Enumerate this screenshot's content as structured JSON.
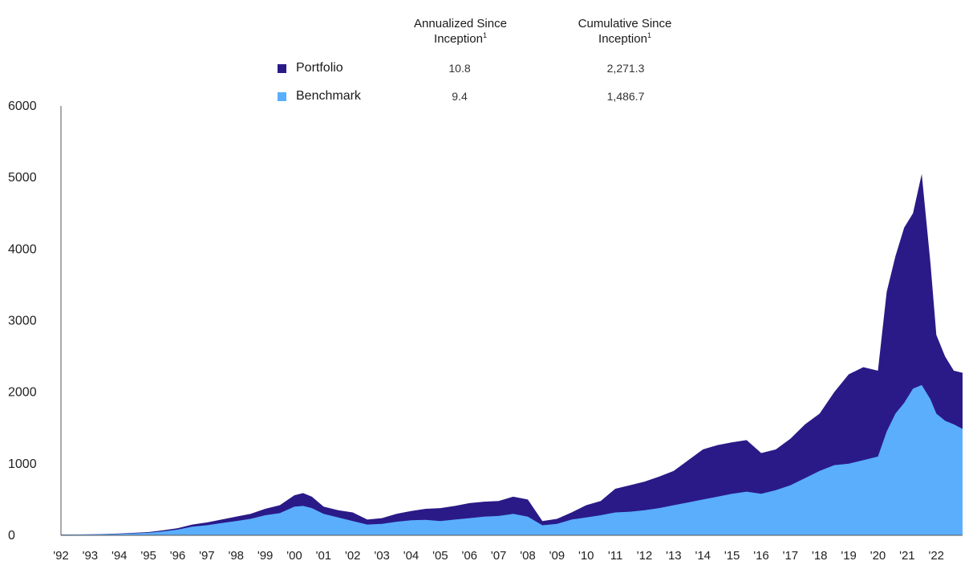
{
  "legend": {
    "col1_title": "Annualized Since",
    "col1_title2": "Inception",
    "col2_title": "Cumulative Since",
    "col2_title2": "Inception",
    "footnote_mark": "1",
    "rows": [
      {
        "name": "Portfolio",
        "color": "#2a1a87",
        "annualized": "10.8",
        "cumulative": "2,271.3"
      },
      {
        "name": "Benchmark",
        "color": "#5aaefc",
        "annualized": "9.4",
        "cumulative": "1,486.7"
      }
    ]
  },
  "chart_data": {
    "type": "area",
    "ylim": [
      0,
      6000
    ],
    "yticks": [
      0,
      1000,
      2000,
      3000,
      4000,
      5000,
      6000
    ],
    "xlim": [
      1992.0,
      2022.9
    ],
    "xticks": [
      {
        "value": 1992,
        "label": "'92"
      },
      {
        "value": 1993,
        "label": "'93"
      },
      {
        "value": 1994,
        "label": "'94"
      },
      {
        "value": 1995,
        "label": "'95"
      },
      {
        "value": 1996,
        "label": "'96"
      },
      {
        "value": 1997,
        "label": "'97"
      },
      {
        "value": 1998,
        "label": "'98"
      },
      {
        "value": 1999,
        "label": "'99"
      },
      {
        "value": 2000,
        "label": "'00"
      },
      {
        "value": 2001,
        "label": "'01"
      },
      {
        "value": 2002,
        "label": "'02"
      },
      {
        "value": 2003,
        "label": "'03"
      },
      {
        "value": 2004,
        "label": "'04"
      },
      {
        "value": 2005,
        "label": "'05"
      },
      {
        "value": 2006,
        "label": "'06"
      },
      {
        "value": 2007,
        "label": "'07"
      },
      {
        "value": 2008,
        "label": "'08"
      },
      {
        "value": 2009,
        "label": "'09"
      },
      {
        "value": 2010,
        "label": "'10"
      },
      {
        "value": 2011,
        "label": "'11"
      },
      {
        "value": 2012,
        "label": "'12"
      },
      {
        "value": 2013,
        "label": "'13"
      },
      {
        "value": 2014,
        "label": "'14"
      },
      {
        "value": 2015,
        "label": "'15"
      },
      {
        "value": 2016,
        "label": "'16"
      },
      {
        "value": 2017,
        "label": "'17"
      },
      {
        "value": 2018,
        "label": "'18"
      },
      {
        "value": 2019,
        "label": "'19"
      },
      {
        "value": 2020,
        "label": "'20"
      },
      {
        "value": 2021,
        "label": "'21"
      },
      {
        "value": 2022,
        "label": "'22"
      }
    ],
    "series": [
      {
        "name": "Portfolio",
        "color": "#2a1a87",
        "x": [
          1992.0,
          1993.0,
          1994.0,
          1995.0,
          1995.5,
          1996.0,
          1996.5,
          1997.0,
          1997.5,
          1998.0,
          1998.5,
          1999.0,
          1999.5,
          2000.0,
          2000.3,
          2000.6,
          2001.0,
          2001.5,
          2002.0,
          2002.5,
          2003.0,
          2003.5,
          2004.0,
          2004.5,
          2005.0,
          2005.5,
          2006.0,
          2006.5,
          2007.0,
          2007.5,
          2008.0,
          2008.5,
          2009.0,
          2009.5,
          2010.0,
          2010.5,
          2011.0,
          2011.5,
          2012.0,
          2012.5,
          2013.0,
          2013.5,
          2014.0,
          2014.5,
          2015.0,
          2015.5,
          2016.0,
          2016.5,
          2017.0,
          2017.5,
          2018.0,
          2018.5,
          2019.0,
          2019.5,
          2020.0,
          2020.3,
          2020.6,
          2020.9,
          2021.2,
          2021.5,
          2021.8,
          2022.0,
          2022.3,
          2022.6,
          2022.9
        ],
        "values": [
          10,
          15,
          25,
          45,
          70,
          100,
          150,
          180,
          220,
          260,
          300,
          370,
          420,
          560,
          590,
          540,
          400,
          350,
          320,
          220,
          240,
          300,
          340,
          370,
          380,
          410,
          450,
          470,
          480,
          540,
          500,
          200,
          230,
          320,
          420,
          480,
          650,
          700,
          750,
          820,
          900,
          1050,
          1200,
          1260,
          1300,
          1330,
          1150,
          1200,
          1350,
          1550,
          1700,
          2000,
          2250,
          2350,
          2300,
          3400,
          3900,
          4300,
          4500,
          5050,
          3800,
          2800,
          2500,
          2300,
          2271
        ]
      },
      {
        "name": "Benchmark",
        "color": "#5aaefc",
        "x": [
          1992.0,
          1993.0,
          1994.0,
          1995.0,
          1995.5,
          1996.0,
          1996.5,
          1997.0,
          1997.5,
          1998.0,
          1998.5,
          1999.0,
          1999.5,
          2000.0,
          2000.3,
          2000.6,
          2001.0,
          2001.5,
          2002.0,
          2002.5,
          2003.0,
          2003.5,
          2004.0,
          2004.5,
          2005.0,
          2005.5,
          2006.0,
          2006.5,
          2007.0,
          2007.5,
          2008.0,
          2008.5,
          2009.0,
          2009.5,
          2010.0,
          2010.5,
          2011.0,
          2011.5,
          2012.0,
          2012.5,
          2013.0,
          2013.5,
          2014.0,
          2014.5,
          2015.0,
          2015.5,
          2016.0,
          2016.5,
          2017.0,
          2017.5,
          2018.0,
          2018.5,
          2019.0,
          2019.5,
          2020.0,
          2020.3,
          2020.6,
          2020.9,
          2021.2,
          2021.5,
          2021.8,
          2022.0,
          2022.3,
          2022.6,
          2022.9
        ],
        "values": [
          8,
          12,
          20,
          35,
          55,
          80,
          120,
          140,
          170,
          200,
          230,
          280,
          310,
          400,
          410,
          380,
          300,
          250,
          200,
          150,
          160,
          190,
          210,
          215,
          200,
          220,
          240,
          260,
          270,
          300,
          260,
          140,
          160,
          220,
          250,
          280,
          320,
          330,
          350,
          380,
          420,
          460,
          500,
          540,
          580,
          610,
          580,
          630,
          700,
          800,
          900,
          980,
          1000,
          1050,
          1100,
          1450,
          1700,
          1850,
          2050,
          2100,
          1900,
          1700,
          1600,
          1550,
          1487
        ]
      }
    ]
  }
}
